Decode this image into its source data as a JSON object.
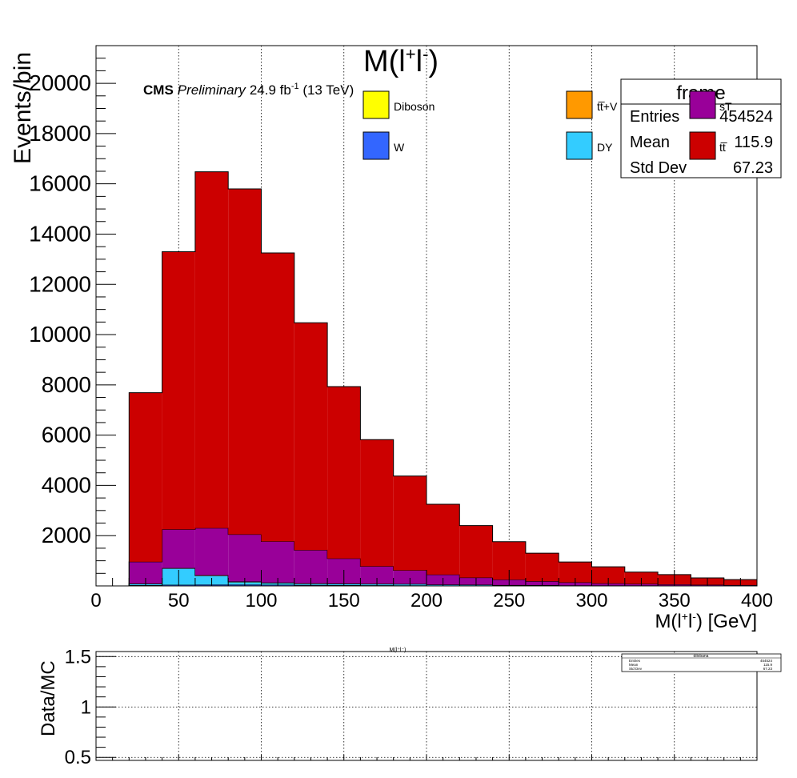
{
  "chart_data": [
    {
      "type": "stacked-histogram",
      "title_base": "M(l",
      "title_sup1": "+",
      "title_mid": "l",
      "title_sup2": "-",
      "title_end": ")",
      "ylabel": "Events/bin",
      "xlabel_base": "M(l",
      "xlabel_sup1": "+",
      "xlabel_mid": "l",
      "xlabel_sup2": "-",
      "xlabel_end": ") [GeV]",
      "cms_label": "CMS",
      "prelim_label": "Preliminary",
      "lumi_base": "24.9 fb",
      "lumi_sup": "-1",
      "lumi_end": " (13 TeV)",
      "xlim": [
        0,
        400
      ],
      "ylim": [
        0,
        21500
      ],
      "grid_x": true,
      "x_ticks": [
        0,
        50,
        100,
        150,
        200,
        250,
        300,
        350,
        400
      ],
      "y_ticks": [
        2000,
        4000,
        6000,
        8000,
        10000,
        12000,
        14000,
        16000,
        18000,
        20000
      ],
      "bin_edges": [
        20,
        40,
        60,
        80,
        100,
        120,
        140,
        160,
        180,
        200,
        220,
        240,
        260,
        280,
        300,
        320,
        340,
        360,
        380,
        400
      ],
      "series": [
        {
          "name": "Diboson",
          "color": "#ffff00",
          "values": [
            10,
            15,
            20,
            20,
            15,
            12,
            10,
            8,
            6,
            5,
            4,
            3,
            3,
            2,
            2,
            2,
            1,
            1,
            1
          ]
        },
        {
          "name": "W",
          "color": "#3366ff",
          "values": [
            20,
            30,
            35,
            35,
            30,
            25,
            20,
            18,
            15,
            12,
            10,
            8,
            7,
            6,
            5,
            4,
            4,
            3,
            3
          ]
        },
        {
          "name": "DY",
          "color": "#33ccff",
          "values": [
            50,
            650,
            350,
            100,
            70,
            50,
            50,
            50,
            50,
            30,
            30,
            20,
            20,
            10,
            10,
            10,
            10,
            5,
            5
          ]
        },
        {
          "name": "tt̅+V",
          "color": "#ff9900",
          "values": [
            10,
            15,
            20,
            20,
            18,
            15,
            12,
            10,
            8,
            6,
            5,
            4,
            3,
            3,
            2,
            2,
            2,
            1,
            1
          ]
        },
        {
          "name": "sT",
          "color": "#990099",
          "values": [
            870,
            1540,
            1875,
            1875,
            1637,
            1323,
            998,
            694,
            541,
            397,
            281,
            215,
            152,
            119,
            81,
            62,
            43,
            35,
            25
          ]
        },
        {
          "name": "tt̅",
          "color": "#cc0000",
          "values": [
            6730,
            11050,
            14180,
            13750,
            11480,
            9045,
            6840,
            5040,
            3750,
            2800,
            2070,
            1510,
            1115,
            810,
            660,
            470,
            390,
            275,
            215
          ]
        }
      ],
      "legend": {
        "placement": "top",
        "entries": [
          {
            "label": "Diboson",
            "color": "#ffff00"
          },
          {
            "label": "W",
            "color": "#3366ff"
          },
          {
            "label": "tt̅+V",
            "color": "#ff9900"
          },
          {
            "label": "DY",
            "color": "#33ccff"
          },
          {
            "label": "sT",
            "color": "#990099"
          },
          {
            "label": "tt̅",
            "color": "#cc0000"
          }
        ]
      },
      "stats_box": {
        "title": "frame",
        "rows": [
          {
            "label": "Entries",
            "value": "454524"
          },
          {
            "label": "Mean",
            "value": "115.9"
          },
          {
            "label": "Std Dev",
            "value": "67.23"
          }
        ]
      }
    },
    {
      "type": "ratio",
      "ylabel": "Data/MC",
      "title": "M(l⁺l⁻)",
      "ylim": [
        0.47,
        1.55
      ],
      "y_ticks": [
        "0.5",
        "1",
        "1.5"
      ],
      "grid_x": true,
      "grid_y": true,
      "values": [],
      "stats_box": {
        "title": "dilobana",
        "rows": [
          {
            "label": "Entries",
            "value": "454524"
          },
          {
            "label": "Mean",
            "value": "115.9"
          },
          {
            "label": "Std Dev",
            "value": "67.23"
          }
        ]
      }
    }
  ]
}
